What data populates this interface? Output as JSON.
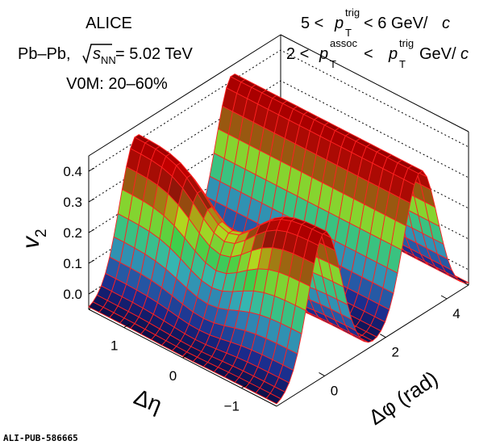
{
  "header": {
    "experiment": "ALICE",
    "system_prefix": "Pb–Pb, ",
    "system_sqrt": "s",
    "system_sub": "NN",
    "system_suffix": " = 5.02 TeV",
    "centrality": "V0M: 20–60%",
    "trig_low": "5 < ",
    "trig_p": "p",
    "trig_sup": "trig",
    "trig_sub": "T",
    "trig_high": " < 6 GeV/",
    "trig_unit_c": "c",
    "assoc_low": "2 < ",
    "assoc_p": "p",
    "assoc_sup": "assoc",
    "assoc_sub": "T",
    "assoc_mid": " < ",
    "assoc_p2": "p",
    "assoc_sup2": "trig",
    "assoc_sub2": "T",
    "assoc_high": " GeV/",
    "assoc_unit_c": "c"
  },
  "watermark": "ALI-PUB-586665",
  "chart_data": {
    "type": "surface3d",
    "zlabel_main": "v",
    "zlabel_sub": "2",
    "xlabel": "Δφ (rad)",
    "ylabel": "Δη",
    "x_ticks": [
      "0",
      "2",
      "4"
    ],
    "y_ticks": [
      "1",
      "0",
      "−1"
    ],
    "z_ticks": [
      "0.0",
      "0.1",
      "0.2",
      "0.3",
      "0.4"
    ],
    "xlim": [
      -1.571,
      4.712
    ],
    "ylim": [
      -1.6,
      1.6
    ],
    "zlim": [
      -0.05,
      0.45
    ],
    "colormap": [
      "#0a0a3c",
      "#1a2a8c",
      "#2c6fb0",
      "#35b5b5",
      "#3fcf4a",
      "#b7d81c",
      "#8a1a0a",
      "#c00000",
      "#600000"
    ],
    "mesh_color": "#ff2020",
    "grid": true,
    "surface": {
      "near_side_peak": {
        "dphi": 0.0,
        "deta": 0.0,
        "v2": 0.36
      },
      "near_side_ridge": {
        "dphi": 0.0,
        "v2": 0.42
      },
      "away_side_ridge": {
        "dphi": 3.1416,
        "v2": 0.42
      },
      "minimum": {
        "dphi": 1.5708,
        "v2": -0.05
      }
    }
  }
}
